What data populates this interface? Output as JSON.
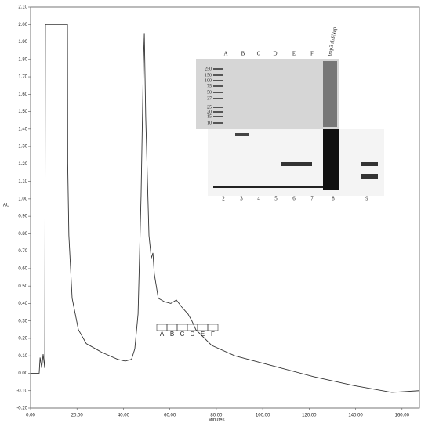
{
  "chart_data": {
    "type": "line",
    "x_label": "Minutes",
    "y_label": "AU",
    "color": "#333333",
    "x": [
      0,
      3.7,
      4.1,
      4.8,
      5.4,
      6.1,
      6.4,
      15.9,
      16.0,
      16.5,
      17.9,
      20.6,
      24,
      30.7,
      37.5,
      40.8,
      43.5,
      44.9,
      46.3,
      47.6,
      48.6,
      49.0,
      49.6,
      51,
      52,
      52.7,
      53.3,
      55,
      57.7,
      60.4,
      62.8,
      65.1,
      67.8,
      69.5,
      71.2,
      78,
      88,
      105,
      122,
      139,
      155.6,
      167.4
    ],
    "values": [
      0.0,
      0.0,
      0.09,
      0.03,
      0.11,
      0.03,
      2.0,
      2.0,
      1.2,
      0.79,
      0.43,
      0.25,
      0.17,
      0.12,
      0.08,
      0.07,
      0.08,
      0.14,
      0.34,
      1.02,
      1.78,
      1.95,
      1.47,
      0.79,
      0.66,
      0.69,
      0.57,
      0.43,
      0.41,
      0.4,
      0.42,
      0.38,
      0.34,
      0.3,
      0.25,
      0.16,
      0.1,
      0.04,
      -0.02,
      -0.07,
      -0.11,
      -0.1
    ],
    "xlim": [
      0,
      167.5
    ],
    "ylim": [
      -0.2,
      2.1
    ],
    "xticks": [
      {
        "value": 0,
        "label": "0.00"
      },
      {
        "value": 20,
        "label": "20.00"
      },
      {
        "value": 40,
        "label": "40.00"
      },
      {
        "value": 60,
        "label": "60.00"
      },
      {
        "value": 80,
        "label": "80.00"
      },
      {
        "value": 100,
        "label": "100.00"
      },
      {
        "value": 120,
        "label": "120.00"
      },
      {
        "value": 140,
        "label": "140.00"
      },
      {
        "value": 160,
        "label": "160.00"
      }
    ],
    "yticks": [
      {
        "value": -0.2,
        "label": "-0.20"
      },
      {
        "value": -0.1,
        "label": "-0.10"
      },
      {
        "value": 0,
        "label": "0.00"
      },
      {
        "value": 0.1,
        "label": "0.10"
      },
      {
        "value": 0.2,
        "label": "0.20"
      },
      {
        "value": 0.3,
        "label": "0.30"
      },
      {
        "value": 0.4,
        "label": "0.40"
      },
      {
        "value": 0.5,
        "label": "0.50"
      },
      {
        "value": 0.6,
        "label": "0.60"
      },
      {
        "value": 0.7,
        "label": "0.70"
      },
      {
        "value": 0.8,
        "label": "0.80"
      },
      {
        "value": 0.9,
        "label": "0.90"
      },
      {
        "value": 1.0,
        "label": "1.00"
      },
      {
        "value": 1.1,
        "label": "1.10"
      },
      {
        "value": 1.2,
        "label": "1.20"
      },
      {
        "value": 1.3,
        "label": "1.30"
      },
      {
        "value": 1.4,
        "label": "1.40"
      },
      {
        "value": 1.5,
        "label": "1.50"
      },
      {
        "value": 1.6,
        "label": "1.60"
      },
      {
        "value": 1.7,
        "label": "1.70"
      },
      {
        "value": 1.8,
        "label": "1.80"
      },
      {
        "value": 1.9,
        "label": "1.90"
      },
      {
        "value": 2.0,
        "label": "2.00"
      },
      {
        "value": 2.1,
        "label": "2.10"
      }
    ],
    "fractions": [
      "A",
      "B",
      "C",
      "D",
      "E",
      "F"
    ],
    "gel": {
      "lanes": [
        "A",
        "B",
        "C",
        "D",
        "E",
        "F",
        "Imp3 rhSNap"
      ],
      "markers": [
        "250",
        "150",
        "100",
        "75",
        "50",
        "37",
        "25",
        "20",
        "15",
        "10"
      ],
      "blot_lanes": [
        "2",
        "3",
        "4",
        "5",
        "6",
        "7",
        "8",
        "9"
      ]
    }
  }
}
